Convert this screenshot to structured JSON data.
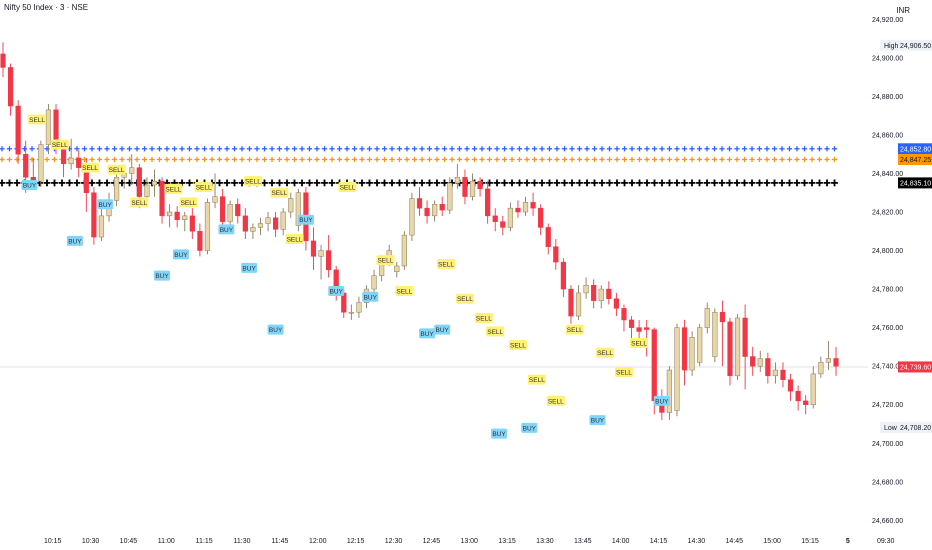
{
  "header": {
    "title": "Nifty 50 Index · 3 · NSE",
    "currency": "INR"
  },
  "colors": {
    "up": "#e8d5a8",
    "up_border": "#8a7a5a",
    "down": "#f23645",
    "wick": "#6b6b6b",
    "blue_line": "#2962ff",
    "orange_line": "#ff9800",
    "black_line": "#000000",
    "sell_bg": "#fff176",
    "buy_bg": "#81d4fa",
    "current_price": "#f23645",
    "current_line": "#e0e3eb"
  },
  "chart_data": {
    "type": "candlestick",
    "ylim": [
      24655,
      24930
    ],
    "y_ticks": [
      "24,920.00",
      "24,900.00",
      "24,880.00",
      "24,860.00",
      "24,840.00",
      "24,820.00",
      "24,800.00",
      "24,780.00",
      "24,760.00",
      "24,740.00",
      "24,720.00",
      "24,700.00",
      "24,680.00",
      "24,660.00"
    ],
    "y_tick_values": [
      24920,
      24900,
      24880,
      24860,
      24840,
      24820,
      24800,
      24780,
      24760,
      24740,
      24720,
      24700,
      24680,
      24660
    ],
    "x_ticks": [
      "10:15",
      "10:30",
      "10:45",
      "11:00",
      "11:15",
      "11:30",
      "11:45",
      "12:00",
      "12:15",
      "12:30",
      "12:45",
      "13:00",
      "13:15",
      "13:30",
      "13:45",
      "14:00",
      "14:15",
      "14:30",
      "14:45",
      "15:00",
      "15:15",
      "5",
      "09:30"
    ],
    "x_tick_index": [
      3,
      8,
      13,
      18,
      23,
      28,
      33,
      38,
      43,
      48,
      53,
      58,
      63,
      68,
      73,
      78,
      83,
      88,
      93,
      98,
      103,
      108,
      113
    ],
    "candles": [
      {
        "o": 24902,
        "h": 24908,
        "c": 24895,
        "l": 24890
      },
      {
        "o": 24895,
        "h": 24897,
        "c": 24875,
        "l": 24870
      },
      {
        "o": 24875,
        "h": 24878,
        "c": 24850,
        "l": 24845
      },
      {
        "o": 24850,
        "h": 24857,
        "c": 24838,
        "l": 24830
      },
      {
        "o": 24838,
        "h": 24848,
        "c": 24836,
        "l": 24832
      },
      {
        "o": 24836,
        "h": 24857,
        "c": 24855,
        "l": 24833
      },
      {
        "o": 24855,
        "h": 24876,
        "c": 24873,
        "l": 24850
      },
      {
        "o": 24873,
        "h": 24876,
        "c": 24853,
        "l": 24850
      },
      {
        "o": 24853,
        "h": 24856,
        "c": 24845,
        "l": 24838
      },
      {
        "o": 24845,
        "h": 24858,
        "c": 24848,
        "l": 24842
      },
      {
        "o": 24848,
        "h": 24852,
        "c": 24843,
        "l": 24838
      },
      {
        "o": 24843,
        "h": 24848,
        "c": 24830,
        "l": 24820
      },
      {
        "o": 24830,
        "h": 24833,
        "c": 24807,
        "l": 24803
      },
      {
        "o": 24807,
        "h": 24822,
        "c": 24818,
        "l": 24805
      },
      {
        "o": 24818,
        "h": 24830,
        "c": 24826,
        "l": 24815
      },
      {
        "o": 24826,
        "h": 24840,
        "c": 24838,
        "l": 24823
      },
      {
        "o": 24838,
        "h": 24842,
        "c": 24840,
        "l": 24832
      },
      {
        "o": 24840,
        "h": 24850,
        "c": 24843,
        "l": 24834
      },
      {
        "o": 24843,
        "h": 24845,
        "c": 24828,
        "l": 24822
      },
      {
        "o": 24828,
        "h": 24838,
        "c": 24834,
        "l": 24825
      },
      {
        "o": 24834,
        "h": 24842,
        "c": 24836,
        "l": 24828
      },
      {
        "o": 24836,
        "h": 24838,
        "c": 24818,
        "l": 24814
      },
      {
        "o": 24818,
        "h": 24824,
        "c": 24820,
        "l": 24812
      },
      {
        "o": 24820,
        "h": 24823,
        "c": 24816,
        "l": 24812
      },
      {
        "o": 24816,
        "h": 24820,
        "c": 24818,
        "l": 24810
      },
      {
        "o": 24818,
        "h": 24822,
        "c": 24810,
        "l": 24806
      },
      {
        "o": 24810,
        "h": 24814,
        "c": 24800,
        "l": 24797
      },
      {
        "o": 24800,
        "h": 24827,
        "c": 24825,
        "l": 24798
      },
      {
        "o": 24825,
        "h": 24840,
        "c": 24828,
        "l": 24822
      },
      {
        "o": 24828,
        "h": 24832,
        "c": 24815,
        "l": 24810
      },
      {
        "o": 24815,
        "h": 24826,
        "c": 24824,
        "l": 24812
      },
      {
        "o": 24824,
        "h": 24827,
        "c": 24818,
        "l": 24814
      },
      {
        "o": 24818,
        "h": 24822,
        "c": 24810,
        "l": 24806
      },
      {
        "o": 24810,
        "h": 24814,
        "c": 24812,
        "l": 24806
      },
      {
        "o": 24812,
        "h": 24817,
        "c": 24814,
        "l": 24808
      },
      {
        "o": 24814,
        "h": 24820,
        "c": 24817,
        "l": 24810
      },
      {
        "o": 24817,
        "h": 24820,
        "c": 24811,
        "l": 24807
      },
      {
        "o": 24811,
        "h": 24822,
        "c": 24820,
        "l": 24808
      },
      {
        "o": 24820,
        "h": 24830,
        "c": 24827,
        "l": 24817
      },
      {
        "o": 24813,
        "h": 24832,
        "c": 24830,
        "l": 24810
      },
      {
        "o": 24830,
        "h": 24833,
        "c": 24805,
        "l": 24800
      },
      {
        "o": 24805,
        "h": 24812,
        "c": 24797,
        "l": 24790
      },
      {
        "o": 24797,
        "h": 24803,
        "c": 24800,
        "l": 24785
      },
      {
        "o": 24800,
        "h": 24808,
        "c": 24790,
        "l": 24786
      },
      {
        "o": 24790,
        "h": 24792,
        "c": 24778,
        "l": 24774
      },
      {
        "o": 24778,
        "h": 24780,
        "c": 24768,
        "l": 24765
      },
      {
        "o": 24768,
        "h": 24772,
        "c": 24768,
        "l": 24764
      },
      {
        "o": 24768,
        "h": 24776,
        "c": 24773,
        "l": 24765
      },
      {
        "o": 24773,
        "h": 24782,
        "c": 24780,
        "l": 24770
      },
      {
        "o": 24780,
        "h": 24790,
        "c": 24787,
        "l": 24777
      },
      {
        "o": 24787,
        "h": 24797,
        "c": 24794,
        "l": 24784
      },
      {
        "o": 24794,
        "h": 24803,
        "c": 24800,
        "l": 24792
      },
      {
        "o": 24789,
        "h": 24794,
        "c": 24792,
        "l": 24786
      },
      {
        "o": 24792,
        "h": 24810,
        "c": 24808,
        "l": 24790
      },
      {
        "o": 24808,
        "h": 24830,
        "c": 24827,
        "l": 24805
      },
      {
        "o": 24827,
        "h": 24833,
        "c": 24822,
        "l": 24818
      },
      {
        "o": 24822,
        "h": 24826,
        "c": 24818,
        "l": 24814
      },
      {
        "o": 24818,
        "h": 24826,
        "c": 24824,
        "l": 24815
      },
      {
        "o": 24824,
        "h": 24828,
        "c": 24821,
        "l": 24818
      },
      {
        "o": 24821,
        "h": 24838,
        "c": 24835,
        "l": 24819
      },
      {
        "o": 24835,
        "h": 24845,
        "c": 24838,
        "l": 24832
      },
      {
        "o": 24838,
        "h": 24842,
        "c": 24828,
        "l": 24824
      },
      {
        "o": 24828,
        "h": 24840,
        "c": 24836,
        "l": 24826
      },
      {
        "o": 24836,
        "h": 24838,
        "c": 24832,
        "l": 24828
      },
      {
        "o": 24832,
        "h": 24836,
        "c": 24818,
        "l": 24814
      },
      {
        "o": 24818,
        "h": 24822,
        "c": 24815,
        "l": 24810
      },
      {
        "o": 24815,
        "h": 24818,
        "c": 24812,
        "l": 24808
      },
      {
        "o": 24812,
        "h": 24825,
        "c": 24822,
        "l": 24810
      },
      {
        "o": 24822,
        "h": 24826,
        "c": 24820,
        "l": 24817
      },
      {
        "o": 24820,
        "h": 24828,
        "c": 24825,
        "l": 24818
      },
      {
        "o": 24825,
        "h": 24830,
        "c": 24822,
        "l": 24818
      },
      {
        "o": 24822,
        "h": 24824,
        "c": 24812,
        "l": 24808
      },
      {
        "o": 24812,
        "h": 24814,
        "c": 24802,
        "l": 24798
      },
      {
        "o": 24802,
        "h": 24806,
        "c": 24794,
        "l": 24790
      },
      {
        "o": 24794,
        "h": 24796,
        "c": 24780,
        "l": 24776
      },
      {
        "o": 24780,
        "h": 24782,
        "c": 24766,
        "l": 24762
      },
      {
        "o": 24766,
        "h": 24782,
        "c": 24778,
        "l": 24764
      },
      {
        "o": 24778,
        "h": 24786,
        "c": 24782,
        "l": 24775
      },
      {
        "o": 24782,
        "h": 24785,
        "c": 24774,
        "l": 24770
      },
      {
        "o": 24774,
        "h": 24782,
        "c": 24780,
        "l": 24770
      },
      {
        "o": 24780,
        "h": 24784,
        "c": 24775,
        "l": 24772
      },
      {
        "o": 24775,
        "h": 24778,
        "c": 24770,
        "l": 24766
      },
      {
        "o": 24770,
        "h": 24772,
        "c": 24764,
        "l": 24758
      },
      {
        "o": 24764,
        "h": 24766,
        "c": 24760,
        "l": 24750
      },
      {
        "o": 24760,
        "h": 24764,
        "c": 24758,
        "l": 24754
      },
      {
        "o": 24760,
        "h": 24764,
        "c": 24759,
        "l": 24745
      },
      {
        "o": 24759,
        "h": 24760,
        "c": 24722,
        "l": 24715
      },
      {
        "o": 24722,
        "h": 24728,
        "c": 24716,
        "l": 24712
      },
      {
        "o": 24716,
        "h": 24740,
        "c": 24738,
        "l": 24712
      },
      {
        "o": 24717,
        "h": 24762,
        "c": 24760,
        "l": 24714
      },
      {
        "o": 24760,
        "h": 24764,
        "c": 24738,
        "l": 24730
      },
      {
        "o": 24738,
        "h": 24758,
        "c": 24755,
        "l": 24735
      },
      {
        "o": 24742,
        "h": 24762,
        "c": 24760,
        "l": 24740
      },
      {
        "o": 24760,
        "h": 24773,
        "c": 24770,
        "l": 24757
      },
      {
        "o": 24745,
        "h": 24770,
        "c": 24768,
        "l": 24742
      },
      {
        "o": 24768,
        "h": 24774,
        "c": 24763,
        "l": 24740
      },
      {
        "o": 24763,
        "h": 24765,
        "c": 24735,
        "l": 24730
      },
      {
        "o": 24735,
        "h": 24767,
        "c": 24765,
        "l": 24733
      },
      {
        "o": 24765,
        "h": 24772,
        "c": 24745,
        "l": 24728
      },
      {
        "o": 24745,
        "h": 24750,
        "c": 24740,
        "l": 24735
      },
      {
        "o": 24740,
        "h": 24748,
        "c": 24744,
        "l": 24737
      },
      {
        "o": 24744,
        "h": 24747,
        "c": 24735,
        "l": 24731
      },
      {
        "o": 24735,
        "h": 24742,
        "c": 24738,
        "l": 24731
      },
      {
        "o": 24738,
        "h": 24742,
        "c": 24733,
        "l": 24729
      },
      {
        "o": 24733,
        "h": 24736,
        "c": 24727,
        "l": 24722
      },
      {
        "o": 24727,
        "h": 24730,
        "c": 24722,
        "l": 24717
      },
      {
        "o": 24722,
        "h": 24725,
        "c": 24720,
        "l": 24715
      },
      {
        "o": 24720,
        "h": 24740,
        "c": 24736,
        "l": 24718
      },
      {
        "o": 24736,
        "h": 24745,
        "c": 24742,
        "l": 24734
      },
      {
        "o": 24742,
        "h": 24753,
        "c": 24744,
        "l": 24738
      },
      {
        "o": 24744,
        "h": 24750,
        "c": 24740,
        "l": 24735
      }
    ],
    "signals": [
      {
        "type": "SELL",
        "index": 9,
        "price": 24868
      },
      {
        "type": "BUY",
        "index": 7,
        "price": 24834
      },
      {
        "type": "SELL",
        "index": 15,
        "price": 24855
      },
      {
        "type": "SELL",
        "index": 23,
        "price": 24843
      },
      {
        "type": "SELL",
        "index": 30,
        "price": 24842
      },
      {
        "type": "BUY",
        "index": 19,
        "price": 24805
      },
      {
        "type": "BUY",
        "index": 27,
        "price": 24824
      },
      {
        "type": "SELL",
        "index": 36,
        "price": 24825
      },
      {
        "type": "SELL",
        "index": 45,
        "price": 24832
      },
      {
        "type": "SELL",
        "index": 49,
        "price": 24825
      },
      {
        "type": "BUY",
        "index": 42,
        "price": 24787
      },
      {
        "type": "BUY",
        "index": 47,
        "price": 24798
      },
      {
        "type": "SELL",
        "index": 53,
        "price": 24833
      },
      {
        "type": "SELL",
        "index": 66,
        "price": 24836
      },
      {
        "type": "BUY",
        "index": 59,
        "price": 24811
      },
      {
        "type": "SELL",
        "index": 73,
        "price": 24830
      },
      {
        "type": "BUY",
        "index": 65,
        "price": 24791
      },
      {
        "type": "SELL",
        "index": 77,
        "price": 24806
      },
      {
        "type": "BUY",
        "index": 72,
        "price": 24759
      },
      {
        "type": "BUY",
        "index": 80,
        "price": 24816
      },
      {
        "type": "BUY",
        "index": 88,
        "price": 24779
      },
      {
        "type": "SELL",
        "index": 91,
        "price": 24833
      },
      {
        "type": "SELL",
        "index": 101,
        "price": 24795
      },
      {
        "type": "BUY",
        "index": 97,
        "price": 24776
      },
      {
        "type": "SELL",
        "index": 106,
        "price": 24779
      },
      {
        "type": "SELL",
        "index": 117,
        "price": 24793
      },
      {
        "type": "SELL",
        "index": 122,
        "price": 24775
      },
      {
        "type": "BUY",
        "index": 112,
        "price": 24757
      },
      {
        "type": "BUY",
        "index": 116,
        "price": 24759
      },
      {
        "type": "SELL",
        "index": 127,
        "price": 24765
      },
      {
        "type": "SELL",
        "index": 130,
        "price": 24758
      },
      {
        "type": "SELL",
        "index": 136,
        "price": 24751
      },
      {
        "type": "SELL",
        "index": 141,
        "price": 24733
      },
      {
        "type": "SELL",
        "index": 146,
        "price": 24722
      },
      {
        "type": "SELL",
        "index": 151,
        "price": 24759
      },
      {
        "type": "BUY",
        "index": 131,
        "price": 24705
      },
      {
        "type": "BUY",
        "index": 139,
        "price": 24708
      },
      {
        "type": "SELL",
        "index": 159,
        "price": 24747
      },
      {
        "type": "SELL",
        "index": 164,
        "price": 24737
      },
      {
        "type": "BUY",
        "index": 157,
        "price": 24712
      },
      {
        "type": "SELL",
        "index": 168,
        "price": 24752
      },
      {
        "type": "BUY",
        "index": 174,
        "price": 24722
      }
    ],
    "signals_note": "",
    "level_lines": [
      {
        "name": "",
        "value": 24852.8,
        "color": "#2962ff",
        "label": "24,852.80"
      },
      {
        "name": "",
        "value": 24847.25,
        "color": "#ff9800",
        "label": "24,847.25"
      },
      {
        "name": "",
        "value": 24835.1,
        "color": "#000000",
        "label": "24,835.10"
      }
    ],
    "current_price": {
      "value": 24739.6,
      "label": "24,739.60"
    },
    "high": {
      "tag": "High",
      "value": 24906.5,
      "label": "24,906.50"
    },
    "low": {
      "tag": "Low",
      "value": 24708.2,
      "label": "24,708.20"
    }
  }
}
